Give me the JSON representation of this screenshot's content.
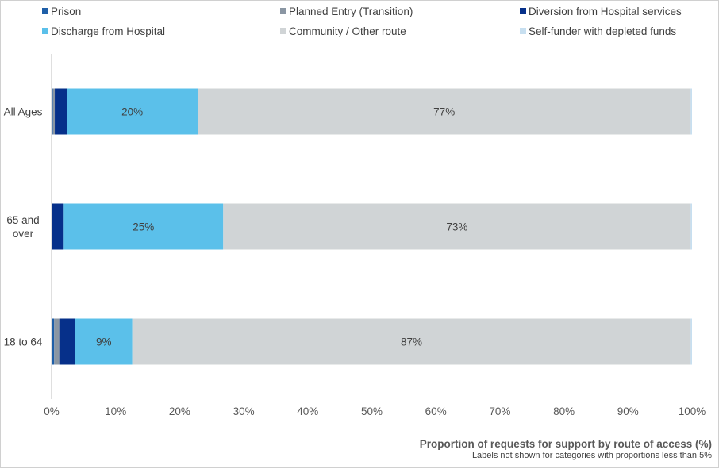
{
  "chart_data": {
    "type": "bar",
    "orientation": "horizontal",
    "stacked": true,
    "categories": [
      "All Ages",
      "65 and over",
      "18 to 64"
    ],
    "series": [
      {
        "name": "Prison",
        "color": "#1f5fa8",
        "values": [
          0.2,
          0.0,
          0.4
        ]
      },
      {
        "name": "Planned Entry (Transition)",
        "color": "#8a96a3",
        "values": [
          0.3,
          0.1,
          0.8
        ]
      },
      {
        "name": "Diversion from Hospital services",
        "color": "#06308a",
        "values": [
          1.9,
          1.8,
          2.5
        ]
      },
      {
        "name": "Discharge from Hospital",
        "color": "#5bc0ea",
        "values": [
          20.4,
          24.9,
          8.9
        ]
      },
      {
        "name": "Community / Other route",
        "color": "#d0d4d6",
        "values": [
          77.0,
          73.0,
          87.2
        ]
      },
      {
        "name": "Self-funder with depleted funds",
        "color": "#c7dff0",
        "values": [
          0.2,
          0.2,
          0.2
        ]
      }
    ],
    "data_labels": [
      {
        "category": "All Ages",
        "series": "Discharge from Hospital",
        "text": "20%"
      },
      {
        "category": "All Ages",
        "series": "Community / Other route",
        "text": "77%"
      },
      {
        "category": "65 and over",
        "series": "Discharge from Hospital",
        "text": "25%"
      },
      {
        "category": "65 and over",
        "series": "Community / Other route",
        "text": "73%"
      },
      {
        "category": "18 to 64",
        "series": "Discharge from Hospital",
        "text": "9%"
      },
      {
        "category": "18 to 64",
        "series": "Community / Other route",
        "text": "87%"
      }
    ],
    "xlim": [
      0,
      100
    ],
    "x_ticks": [
      "0%",
      "10%",
      "20%",
      "30%",
      "40%",
      "50%",
      "60%",
      "70%",
      "80%",
      "90%",
      "100%"
    ],
    "xlabel": "Proportion of requests for support by route of access (%)",
    "note": "Labels not shown for categories with proportions less than 5%",
    "legend_position": "top",
    "grid": true
  }
}
